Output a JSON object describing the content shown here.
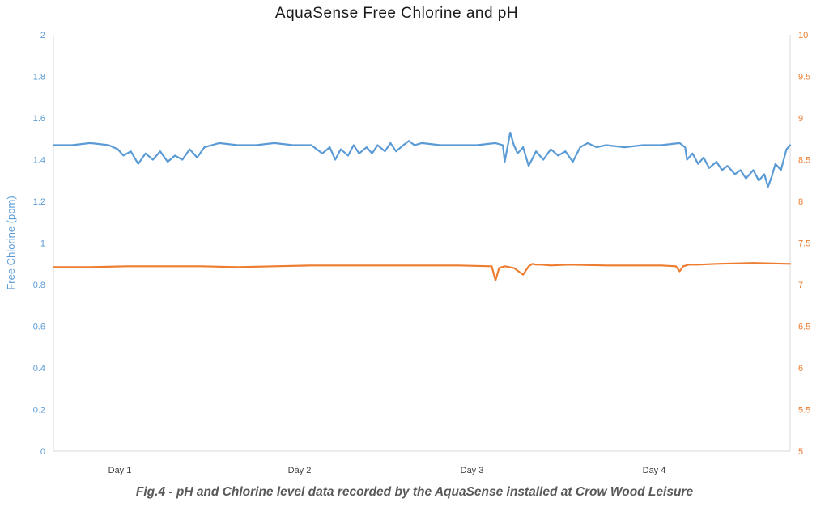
{
  "caption": "Fig.4 - pH and Chlorine level data recorded by the AquaSense installed at Crow Wood Leisure",
  "colors": {
    "chlorine": "#5b9bd5",
    "ph": "#ed7d31",
    "axis_line": "#d9d9d9"
  },
  "chart_data": {
    "type": "line",
    "title": "AquaSense Free Chlorine and pH",
    "xlabel": "",
    "ylabel": "Free Chlorine (ppm)",
    "ylabel_right": "",
    "x_categories": [
      "Day 1",
      "Day 2",
      "Day 3",
      "Day 4"
    ],
    "x_range": [
      0,
      4
    ],
    "ylim": [
      0,
      2
    ],
    "ylim_right": [
      5,
      10
    ],
    "yticks": [
      "0",
      "0.2",
      "0.4",
      "0.6",
      "0.8",
      "1",
      "1.2",
      "1.4",
      "1.6",
      "1.8",
      "2"
    ],
    "yticks_right": [
      "5",
      "5.5",
      "6",
      "6.5",
      "7",
      "7.5",
      "8",
      "8.5",
      "9",
      "9.5",
      "10"
    ],
    "grid": false,
    "series": [
      {
        "axis": "left",
        "x": [
          0,
          0.1,
          0.2,
          0.3,
          0.35,
          0.38,
          0.42,
          0.46,
          0.5,
          0.54,
          0.58,
          0.62,
          0.66,
          0.7,
          0.74,
          0.78,
          0.82,
          0.86,
          0.9,
          1.0,
          1.1,
          1.2,
          1.3,
          1.4,
          1.43,
          1.46,
          1.5,
          1.53,
          1.56,
          1.6,
          1.63,
          1.66,
          1.7,
          1.73,
          1.76,
          1.8,
          1.83,
          1.86,
          1.9,
          1.93,
          1.96,
          2.0,
          2.1,
          2.2,
          2.3,
          2.4,
          2.44,
          2.45,
          2.48,
          2.5,
          2.52,
          2.55,
          2.58,
          2.62,
          2.66,
          2.7,
          2.74,
          2.78,
          2.82,
          2.86,
          2.9,
          2.95,
          3.0,
          3.1,
          3.2,
          3.3,
          3.4,
          3.43,
          3.44,
          3.47,
          3.5,
          3.53,
          3.56,
          3.6,
          3.63,
          3.66,
          3.7,
          3.73,
          3.76,
          3.8,
          3.83,
          3.86,
          3.88,
          3.9,
          3.92,
          3.95,
          3.98,
          4.0
        ],
        "values": [
          1.47,
          1.47,
          1.48,
          1.47,
          1.45,
          1.42,
          1.44,
          1.38,
          1.43,
          1.4,
          1.44,
          1.39,
          1.42,
          1.4,
          1.45,
          1.41,
          1.46,
          1.47,
          1.48,
          1.47,
          1.47,
          1.48,
          1.47,
          1.47,
          1.45,
          1.43,
          1.46,
          1.4,
          1.45,
          1.42,
          1.47,
          1.43,
          1.46,
          1.43,
          1.47,
          1.44,
          1.48,
          1.44,
          1.47,
          1.49,
          1.47,
          1.48,
          1.47,
          1.47,
          1.47,
          1.48,
          1.47,
          1.39,
          1.53,
          1.47,
          1.43,
          1.46,
          1.37,
          1.44,
          1.4,
          1.45,
          1.42,
          1.44,
          1.39,
          1.46,
          1.48,
          1.46,
          1.47,
          1.46,
          1.47,
          1.47,
          1.48,
          1.46,
          1.4,
          1.43,
          1.38,
          1.41,
          1.36,
          1.39,
          1.35,
          1.37,
          1.33,
          1.35,
          1.31,
          1.35,
          1.3,
          1.33,
          1.27,
          1.32,
          1.38,
          1.35,
          1.45,
          1.47
        ]
      },
      {
        "axis": "right",
        "x": [
          0,
          0.2,
          0.4,
          0.6,
          0.8,
          1.0,
          1.2,
          1.4,
          1.6,
          1.8,
          2.0,
          2.2,
          2.38,
          2.4,
          2.42,
          2.45,
          2.5,
          2.55,
          2.58,
          2.6,
          2.62,
          2.65,
          2.7,
          2.8,
          3.0,
          3.2,
          3.3,
          3.38,
          3.4,
          3.42,
          3.45,
          3.5,
          3.6,
          3.8,
          4.0
        ],
        "values": [
          7.21,
          7.21,
          7.22,
          7.22,
          7.22,
          7.21,
          7.22,
          7.23,
          7.23,
          7.23,
          7.23,
          7.23,
          7.22,
          7.05,
          7.2,
          7.22,
          7.2,
          7.12,
          7.22,
          7.25,
          7.24,
          7.24,
          7.23,
          7.24,
          7.23,
          7.23,
          7.23,
          7.22,
          7.16,
          7.22,
          7.24,
          7.24,
          7.25,
          7.26,
          7.25
        ]
      }
    ]
  }
}
